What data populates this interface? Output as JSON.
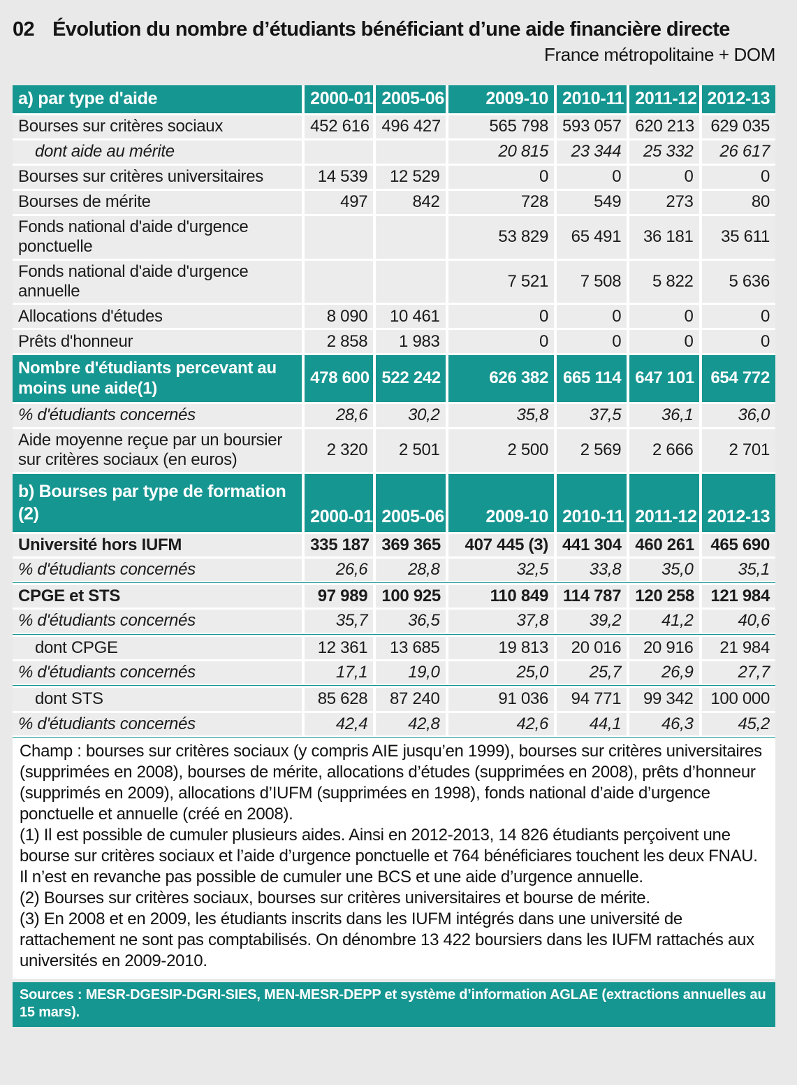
{
  "page": {
    "number": "02",
    "title": "Évolution du nombre d’étudiants bénéficiant d’une aide financière directe",
    "subtitle": "France métropolitaine + DOM"
  },
  "years": [
    "2000-01",
    "2005-06",
    "2009-10",
    "2010-11",
    "2011-12",
    "2012-13"
  ],
  "table": {
    "sections": [
      {
        "header_label": "a) par type d'aide",
        "two_line": false,
        "rows": [
          {
            "label": "Bourses sur critères sociaux",
            "values": [
              "452 616",
              "496 427",
              "565 798",
              "593 057",
              "620 213",
              "629 035"
            ],
            "style": "normal"
          },
          {
            "label": "dont aide au mérite",
            "values": [
              "",
              "",
              "20 815",
              "23 344",
              "25 332",
              "26 617"
            ],
            "style": "italic",
            "indent": true
          },
          {
            "label": "Bourses sur critères universitaires",
            "values": [
              "14 539",
              "12 529",
              "0",
              "0",
              "0",
              "0"
            ],
            "style": "normal"
          },
          {
            "label": "Bourses de mérite",
            "values": [
              "497",
              "842",
              "728",
              "549",
              "273",
              "80"
            ],
            "style": "normal"
          },
          {
            "label": "Fonds national d'aide d'urgence ponctuelle",
            "values": [
              "",
              "",
              "53 829",
              "65 491",
              "36 181",
              "35 611"
            ],
            "style": "normal"
          },
          {
            "label": "Fonds national d'aide d'urgence annuelle",
            "values": [
              "",
              "",
              "7 521",
              "7 508",
              "5 822",
              "5 636"
            ],
            "style": "normal"
          },
          {
            "label": "Allocations d'études",
            "values": [
              "8 090",
              "10 461",
              "0",
              "0",
              "0",
              "0"
            ],
            "style": "normal"
          },
          {
            "label": "Prêts d'honneur",
            "values": [
              "2 858",
              "1 983",
              "0",
              "0",
              "0",
              "0"
            ],
            "style": "normal"
          },
          {
            "label": "Nombre d'étudiants percevant au moins une aide(1)",
            "values": [
              "478 600",
              "522 242",
              "626 382",
              "665 114",
              "647 101",
              "654 772"
            ],
            "style": "teal"
          },
          {
            "label": "% d'étudiants concernés",
            "values": [
              "28,6",
              "30,2",
              "35,8",
              "37,5",
              "36,1",
              "36,0"
            ],
            "style": "italic"
          },
          {
            "label": "Aide moyenne reçue par un boursier sur critères sociaux (en euros)",
            "values": [
              "2 320",
              "2 501",
              "2 500",
              "2 569",
              "2 666",
              "2 701"
            ],
            "style": "normal"
          }
        ]
      },
      {
        "header_label": "b) Bourses par type de formation (2)",
        "two_line": true,
        "rows": [
          {
            "label": "Université hors IUFM",
            "values": [
              "335 187",
              "369 365",
              "407 445 (3)",
              "441 304",
              "460 261",
              "465 690"
            ],
            "style": "bold"
          },
          {
            "label": "% d'étudiants concernés",
            "values": [
              "26,6",
              "28,8",
              "32,5",
              "33,8",
              "35,0",
              "35,1"
            ],
            "style": "italic"
          },
          {
            "divider": true
          },
          {
            "label": "CPGE et STS",
            "values": [
              "97 989",
              "100 925",
              "110 849",
              "114 787",
              "120 258",
              "121 984"
            ],
            "style": "bold"
          },
          {
            "label": "% d'étudiants concernés",
            "values": [
              "35,7",
              "36,5",
              "37,8",
              "39,2",
              "41,2",
              "40,6"
            ],
            "style": "italic"
          },
          {
            "divider": true
          },
          {
            "label": "dont CPGE",
            "values": [
              "12 361",
              "13 685",
              "19 813",
              "20 016",
              "20 916",
              "21 984"
            ],
            "style": "normal",
            "indent": true
          },
          {
            "label": "% d'étudiants concernés",
            "values": [
              "17,1",
              "19,0",
              "25,0",
              "25,7",
              "26,9",
              "27,7"
            ],
            "style": "italic"
          },
          {
            "divider": true
          },
          {
            "label": "dont STS",
            "values": [
              "85 628",
              "87 240",
              "91 036",
              "94 771",
              "99 342",
              "100 000"
            ],
            "style": "normal",
            "indent": true
          },
          {
            "label": "% d'étudiants concernés",
            "values": [
              "42,4",
              "42,8",
              "42,6",
              "44,1",
              "46,3",
              "45,2"
            ],
            "style": "italic"
          },
          {
            "divider": true
          }
        ]
      }
    ]
  },
  "footnotes": [
    "Champ : bourses sur critères sociaux (y compris AIE jusqu’en 1999), bourses sur critères universitaires (supprimées en 2008), bourses de mérite, allocations d’études (supprimées en 2008), prêts d’honneur (supprimés en 2009), allocations d’IUFM (supprimées en 1998), fonds national d’aide d’urgence ponctuelle et annuelle (créé en 2008).",
    "(1) Il est possible de cumuler plusieurs aides. Ainsi en 2012-2013, 14 826 étudiants perçoivent une bourse sur critères sociaux et l’aide d’urgence ponctuelle et 764 bénéficiares touchent les deux FNAU. Il n’est en revanche pas possible de cumuler une BCS et une aide d’urgence annuelle.",
    "(2) Bourses sur critères sociaux, bourses sur critères universitaires et bourse de mérite.",
    "(3) En 2008 et en 2009, les étudiants inscrits dans les IUFM intégrés dans une université de rattachement ne sont pas comptabilisés. On dénombre 13 422 boursiers dans les IUFM rattachés aux universités en 2009-2010."
  ],
  "sources": "Sources : MESR-DGESIP-DGRI-SIES, MEN-MESR-DEPP et système d’information AGLAE (extractions annuelles au 15 mars).",
  "colors": {
    "teal": "#169691",
    "page_background": "#e9e9e9",
    "row_background": "#ececec",
    "notes_background": "#ffffff"
  }
}
